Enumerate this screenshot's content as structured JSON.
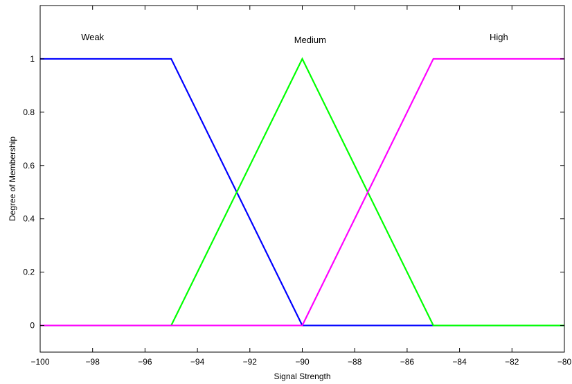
{
  "chart_data": {
    "type": "line",
    "title": "",
    "xlabel": "Signal Strength",
    "ylabel": "Degree of Membership",
    "xlim": [
      -100,
      -80
    ],
    "ylim": [
      -0.1,
      1.2
    ],
    "xticks": [
      -100,
      -98,
      -96,
      -94,
      -92,
      -90,
      -88,
      -86,
      -84,
      -82,
      -80
    ],
    "xtick_labels": [
      "−100",
      "−98",
      "−96",
      "−94",
      "−92",
      "−90",
      "−88",
      "−86",
      "−84",
      "−82",
      "−80"
    ],
    "yticks": [
      0,
      0.2,
      0.4,
      0.6,
      0.8,
      1
    ],
    "ytick_labels": [
      "0",
      "0.2",
      "0.4",
      "0.6",
      "0.8",
      "1"
    ],
    "grid": false,
    "series": [
      {
        "name": "Weak",
        "color": "#0000ff",
        "x": [
          -100,
          -95,
          -90,
          -80
        ],
        "y": [
          1,
          1,
          0,
          0
        ],
        "label_x": -98,
        "label_y": 1.08
      },
      {
        "name": "Medium",
        "color": "#00ff00",
        "x": [
          -100,
          -95,
          -90,
          -85,
          -80
        ],
        "y": [
          0,
          0,
          1,
          0,
          0
        ],
        "label_x": -89.7,
        "label_y": 1.07
      },
      {
        "name": "High",
        "color": "#ff00ff",
        "x": [
          -100,
          -90,
          -85,
          -80
        ],
        "y": [
          0,
          0,
          1,
          1
        ],
        "label_x": -82.5,
        "label_y": 1.08
      }
    ]
  }
}
